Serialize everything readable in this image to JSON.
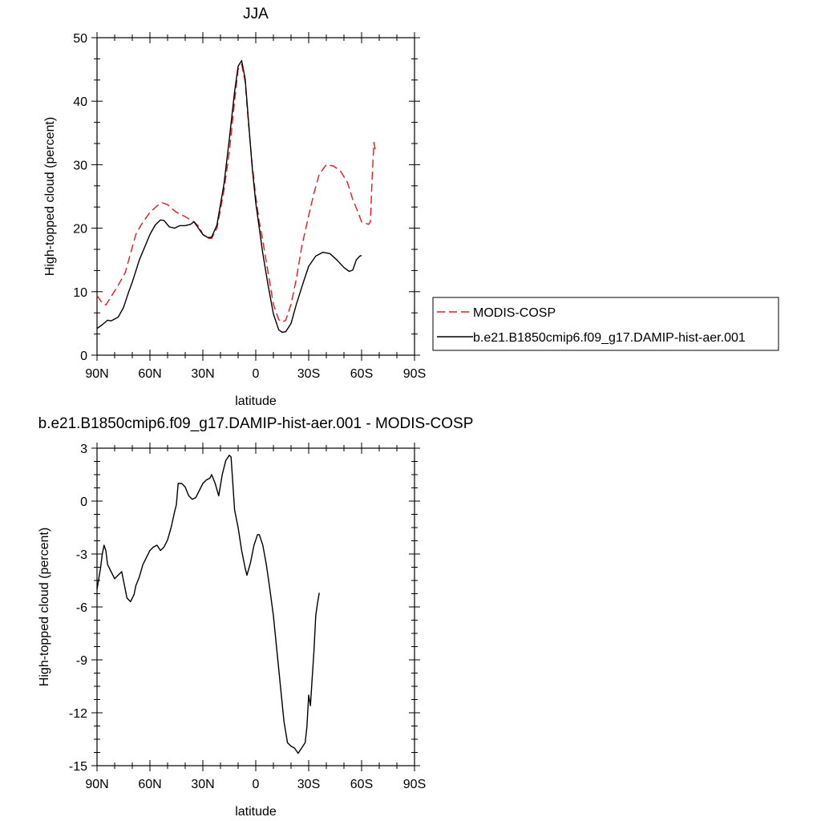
{
  "chart_data": [
    {
      "type": "line",
      "title": "JJA",
      "xlabel": "latitude",
      "ylabel": "High-topped cloud (percent)",
      "xlim": [
        90,
        -90
      ],
      "ylim": [
        0,
        50
      ],
      "xticks": [
        {
          "value": 90,
          "label": "90N"
        },
        {
          "value": 60,
          "label": "60N"
        },
        {
          "value": 30,
          "label": "30N"
        },
        {
          "value": 0,
          "label": "0"
        },
        {
          "value": -30,
          "label": "30S"
        },
        {
          "value": -60,
          "label": "60S"
        },
        {
          "value": -90,
          "label": "90S"
        }
      ],
      "yticks": [
        0,
        10,
        20,
        30,
        40,
        50
      ],
      "grid": false,
      "legend_position": "right",
      "series": [
        {
          "name": "MODIS-COSP",
          "color": "#e8191e",
          "dash": "dashed",
          "points": [
            [
              90,
              9.4
            ],
            [
              87,
              8.2
            ],
            [
              85,
              7.9
            ],
            [
              82,
              9.2
            ],
            [
              78,
              11
            ],
            [
              74,
              13
            ],
            [
              72,
              15
            ],
            [
              68,
              19
            ],
            [
              65,
              20.5
            ],
            [
              60,
              22.5
            ],
            [
              56,
              23.5
            ],
            [
              53,
              24
            ],
            [
              50,
              23.7
            ],
            [
              45,
              22.5
            ],
            [
              40,
              21.8
            ],
            [
              35,
              21
            ],
            [
              32,
              20.2
            ],
            [
              30,
              19
            ],
            [
              27,
              18.4
            ],
            [
              25,
              18.4
            ],
            [
              22,
              20
            ],
            [
              18,
              26
            ],
            [
              15,
              32
            ],
            [
              12,
              40
            ],
            [
              10,
              45
            ],
            [
              8,
              45.8
            ],
            [
              6,
              43
            ],
            [
              4,
              36
            ],
            [
              2,
              30
            ],
            [
              0,
              25
            ],
            [
              -2,
              21
            ],
            [
              -4,
              18
            ],
            [
              -7,
              13
            ],
            [
              -10,
              8
            ],
            [
              -13,
              5.6
            ],
            [
              -15,
              5.2
            ],
            [
              -17,
              5.5
            ],
            [
              -20,
              8
            ],
            [
              -23,
              12
            ],
            [
              -26,
              17
            ],
            [
              -30,
              22
            ],
            [
              -33,
              25.5
            ],
            [
              -36,
              28.5
            ],
            [
              -40,
              30
            ],
            [
              -44,
              29.8
            ],
            [
              -48,
              29
            ],
            [
              -52,
              27.2
            ],
            [
              -55,
              24.5
            ],
            [
              -58,
              22.5
            ],
            [
              -60,
              21
            ],
            [
              -64,
              20.6
            ],
            [
              -65,
              21
            ],
            [
              -66,
              28
            ],
            [
              -67,
              33.5
            ],
            [
              -68,
              32
            ]
          ]
        },
        {
          "name": "b.e21.B1850cmip6.f09_g17.DAMIP-hist-aer.001",
          "color": "#000000",
          "dash": "solid",
          "points": [
            [
              90,
              4.2
            ],
            [
              87,
              4.8
            ],
            [
              84,
              5.5
            ],
            [
              82,
              5.4
            ],
            [
              78,
              6
            ],
            [
              75,
              7.5
            ],
            [
              72,
              10
            ],
            [
              70,
              11.5
            ],
            [
              66,
              15
            ],
            [
              63,
              17
            ],
            [
              60,
              19
            ],
            [
              57,
              20.5
            ],
            [
              54,
              21.3
            ],
            [
              52,
              21.2
            ],
            [
              49,
              20.2
            ],
            [
              46,
              20
            ],
            [
              43,
              20.4
            ],
            [
              40,
              20.4
            ],
            [
              37,
              20.6
            ],
            [
              35,
              21
            ],
            [
              33,
              20.2
            ],
            [
              30,
              19
            ],
            [
              27,
              18.5
            ],
            [
              25,
              18.6
            ],
            [
              22,
              20.5
            ],
            [
              18,
              27
            ],
            [
              15,
              34
            ],
            [
              12,
              41.5
            ],
            [
              10,
              45.5
            ],
            [
              8,
              46.4
            ],
            [
              6,
              43.5
            ],
            [
              4,
              36.5
            ],
            [
              2,
              29.5
            ],
            [
              0,
              24
            ],
            [
              -2,
              20
            ],
            [
              -4,
              16
            ],
            [
              -7,
              11
            ],
            [
              -10,
              6.5
            ],
            [
              -13,
              4
            ],
            [
              -15,
              3.6
            ],
            [
              -17,
              3.7
            ],
            [
              -20,
              5
            ],
            [
              -23,
              8
            ],
            [
              -27,
              11.5
            ],
            [
              -30,
              14
            ],
            [
              -34,
              15.6
            ],
            [
              -38,
              16.2
            ],
            [
              -42,
              16
            ],
            [
              -46,
              15
            ],
            [
              -50,
              13.8
            ],
            [
              -53,
              13.2
            ],
            [
              -55,
              13.4
            ],
            [
              -57,
              15
            ],
            [
              -59,
              15.6
            ],
            [
              -60,
              15.7
            ]
          ]
        }
      ]
    },
    {
      "type": "line",
      "title": "b.e21.B1850cmip6.f09_g17.DAMIP-hist-aer.001 - MODIS-COSP",
      "xlabel": "latitude",
      "ylabel": "High-topped cloud (percent)",
      "xlim": [
        90,
        -90
      ],
      "ylim": [
        -15,
        3
      ],
      "xticks": [
        {
          "value": 90,
          "label": "90N"
        },
        {
          "value": 60,
          "label": "60N"
        },
        {
          "value": 30,
          "label": "30N"
        },
        {
          "value": 0,
          "label": "0"
        },
        {
          "value": -30,
          "label": "30S"
        },
        {
          "value": -60,
          "label": "60S"
        },
        {
          "value": -90,
          "label": "90S"
        }
      ],
      "yticks": [
        3,
        0,
        -3,
        -6,
        -9,
        -12,
        -15
      ],
      "grid": false,
      "series": [
        {
          "color": "#000000",
          "dash": "solid",
          "points": [
            [
              90,
              -5.0
            ],
            [
              88,
              -3.8
            ],
            [
              87,
              -3.0
            ],
            [
              86,
              -2.5
            ],
            [
              85,
              -2.8
            ],
            [
              84,
              -3.6
            ],
            [
              82,
              -4.0
            ],
            [
              80,
              -4.4
            ],
            [
              78,
              -4.2
            ],
            [
              76,
              -4.0
            ],
            [
              75,
              -4.5
            ],
            [
              73,
              -5.5
            ],
            [
              71,
              -5.7
            ],
            [
              69,
              -5.3
            ],
            [
              68,
              -4.8
            ],
            [
              66,
              -4.3
            ],
            [
              64,
              -3.6
            ],
            [
              62,
              -3.2
            ],
            [
              60,
              -2.8
            ],
            [
              58,
              -2.6
            ],
            [
              56,
              -2.5
            ],
            [
              54,
              -2.8
            ],
            [
              52,
              -2.6
            ],
            [
              50,
              -2.2
            ],
            [
              48,
              -1.5
            ],
            [
              46,
              -0.6
            ],
            [
              45,
              -0.2
            ],
            [
              44,
              1.0
            ],
            [
              42,
              1.0
            ],
            [
              40,
              0.8
            ],
            [
              38,
              0.3
            ],
            [
              36,
              0.1
            ],
            [
              34,
              0.2
            ],
            [
              32,
              0.6
            ],
            [
              30,
              1.0
            ],
            [
              28,
              1.2
            ],
            [
              26,
              1.3
            ],
            [
              25,
              1.5
            ],
            [
              23,
              1.0
            ],
            [
              21,
              0.3
            ],
            [
              19,
              1.5
            ],
            [
              17,
              2.3
            ],
            [
              15,
              2.6
            ],
            [
              14,
              2.5
            ],
            [
              13,
              1.0
            ],
            [
              12,
              -0.5
            ],
            [
              10,
              -1.5
            ],
            [
              8,
              -2.8
            ],
            [
              6,
              -3.8
            ],
            [
              5,
              -4.2
            ],
            [
              3,
              -3.5
            ],
            [
              1,
              -2.5
            ],
            [
              -1,
              -1.9
            ],
            [
              -2,
              -1.9
            ],
            [
              -4,
              -2.5
            ],
            [
              -6,
              -3.6
            ],
            [
              -8,
              -5.0
            ],
            [
              -10,
              -6.5
            ],
            [
              -12,
              -8.5
            ],
            [
              -14,
              -10.5
            ],
            [
              -16,
              -12.5
            ],
            [
              -18,
              -13.7
            ],
            [
              -20,
              -13.9
            ],
            [
              -22,
              -14.0
            ],
            [
              -24,
              -14.3
            ],
            [
              -26,
              -14.0
            ],
            [
              -28,
              -13.7
            ],
            [
              -29,
              -12.8
            ],
            [
              -30,
              -11.0
            ],
            [
              -31,
              -11.6
            ],
            [
              -32,
              -10.0
            ],
            [
              -33,
              -8.5
            ],
            [
              -34,
              -6.5
            ],
            [
              -35,
              -5.8
            ],
            [
              -36,
              -5.2
            ]
          ]
        }
      ]
    }
  ]
}
